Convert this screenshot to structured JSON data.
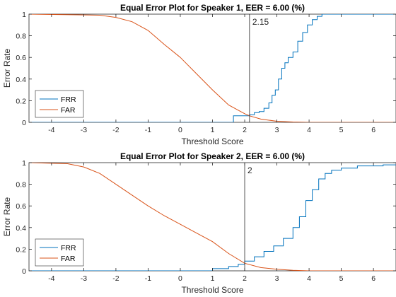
{
  "chart_data": [
    {
      "type": "line",
      "title": "Equal Error Plot for Speaker 1, EER = 6.00 (%)",
      "xlabel": "Threshold Score",
      "ylabel": "Error Rate",
      "xlim": [
        -4.7,
        6.7
      ],
      "ylim": [
        0,
        1
      ],
      "xticks": [
        -4,
        -3,
        -2,
        -1,
        0,
        1,
        2,
        3,
        4,
        5,
        6
      ],
      "yticks": [
        0,
        0.2,
        0.4,
        0.6,
        0.8,
        1
      ],
      "ytick_labels": [
        "0",
        "0.2",
        "0.4",
        "0.6",
        "0.8",
        "1"
      ],
      "grid": false,
      "legend": "bottom-left",
      "threshold": {
        "x": 2.15,
        "label": "2.15"
      },
      "series": [
        {
          "name": "FRR",
          "color": "#0072BD",
          "step": true,
          "x": [
            -4.7,
            1.65,
            1.65,
            2.15,
            2.15,
            2.3,
            2.3,
            2.45,
            2.45,
            2.6,
            2.6,
            2.75,
            2.75,
            2.85,
            2.85,
            2.95,
            2.95,
            3.05,
            3.05,
            3.15,
            3.15,
            3.25,
            3.25,
            3.35,
            3.35,
            3.5,
            3.5,
            3.65,
            3.65,
            3.8,
            3.8,
            3.95,
            3.95,
            4.1,
            4.1,
            4.25,
            4.25,
            4.4,
            4.4,
            4.55,
            4.55,
            6.7
          ],
          "y": [
            0,
            0,
            0.06,
            0.06,
            0.07,
            0.07,
            0.09,
            0.09,
            0.1,
            0.1,
            0.13,
            0.13,
            0.18,
            0.18,
            0.25,
            0.25,
            0.3,
            0.3,
            0.4,
            0.4,
            0.5,
            0.5,
            0.55,
            0.55,
            0.6,
            0.6,
            0.65,
            0.65,
            0.75,
            0.75,
            0.83,
            0.83,
            0.9,
            0.9,
            0.95,
            0.95,
            0.98,
            0.98,
            1.0,
            1.0,
            1.0,
            1.0
          ]
        },
        {
          "name": "FAR",
          "color": "#D95319",
          "step": false,
          "x": [
            -4.7,
            -2.5,
            -2.0,
            -1.5,
            -1.0,
            -0.5,
            0.0,
            0.5,
            1.0,
            1.5,
            2.0,
            2.15,
            2.5,
            3.0,
            3.5,
            4.0,
            4.5,
            6.7
          ],
          "y": [
            1.0,
            0.99,
            0.97,
            0.93,
            0.85,
            0.72,
            0.6,
            0.45,
            0.3,
            0.16,
            0.08,
            0.06,
            0.03,
            0.01,
            0.003,
            0.0,
            0.0,
            0.0
          ]
        }
      ]
    },
    {
      "type": "line",
      "title": "Equal Error Plot for Speaker 2, EER = 6.00 (%)",
      "xlabel": "Threshold Score",
      "ylabel": "Error Rate",
      "xlim": [
        -4.7,
        6.7
      ],
      "ylim": [
        0,
        1
      ],
      "xticks": [
        -4,
        -3,
        -2,
        -1,
        0,
        1,
        2,
        3,
        4,
        5,
        6
      ],
      "yticks": [
        0,
        0.2,
        0.4,
        0.6,
        0.8,
        1
      ],
      "ytick_labels": [
        "0",
        "0.2",
        "0.4",
        "0.6",
        "0.8",
        "1"
      ],
      "grid": false,
      "legend": "bottom-left",
      "threshold": {
        "x": 2.0,
        "label": "2"
      },
      "series": [
        {
          "name": "FRR",
          "color": "#0072BD",
          "step": true,
          "x": [
            -4.7,
            1.0,
            1.0,
            1.5,
            1.5,
            1.8,
            1.8,
            2.0,
            2.0,
            2.3,
            2.3,
            2.6,
            2.6,
            2.9,
            2.9,
            3.2,
            3.2,
            3.5,
            3.5,
            3.7,
            3.7,
            3.9,
            3.9,
            4.1,
            4.1,
            4.3,
            4.3,
            4.5,
            4.5,
            4.7,
            4.7,
            5.0,
            5.0,
            5.5,
            5.5,
            6.3,
            6.3,
            6.7
          ],
          "y": [
            0,
            0,
            0.02,
            0.02,
            0.04,
            0.04,
            0.06,
            0.06,
            0.09,
            0.09,
            0.13,
            0.13,
            0.18,
            0.18,
            0.23,
            0.23,
            0.3,
            0.3,
            0.4,
            0.4,
            0.5,
            0.5,
            0.65,
            0.65,
            0.75,
            0.75,
            0.85,
            0.85,
            0.9,
            0.9,
            0.93,
            0.93,
            0.95,
            0.95,
            0.97,
            0.97,
            0.98,
            0.98
          ]
        },
        {
          "name": "FAR",
          "color": "#D95319",
          "step": false,
          "x": [
            -4.7,
            -3.5,
            -3.0,
            -2.5,
            -2.0,
            -1.5,
            -1.0,
            -0.5,
            0.0,
            0.5,
            1.0,
            1.5,
            2.0,
            2.5,
            3.0,
            3.5,
            4.0,
            4.5,
            6.7
          ],
          "y": [
            1.0,
            0.99,
            0.96,
            0.9,
            0.8,
            0.7,
            0.6,
            0.51,
            0.43,
            0.35,
            0.27,
            0.16,
            0.07,
            0.03,
            0.015,
            0.005,
            0.0,
            0.0,
            0.0
          ]
        }
      ]
    }
  ]
}
